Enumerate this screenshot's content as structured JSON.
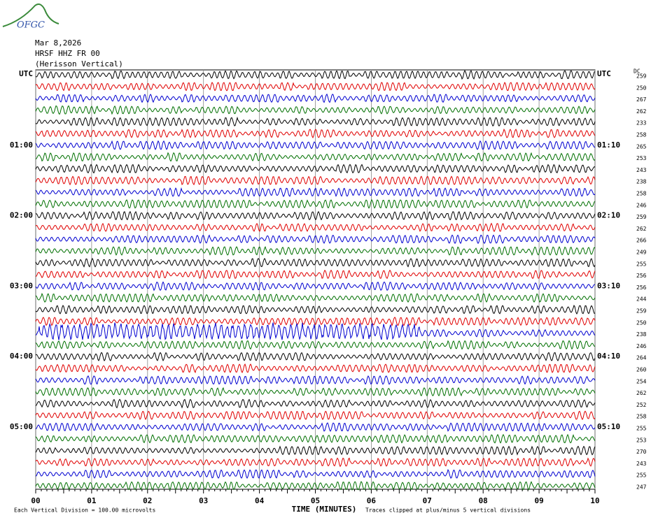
{
  "logo": "OFGC",
  "header": {
    "date": "Mar 8,2026",
    "station": "HRSF HHZ FR 00",
    "location": "(Herisson Vertical)"
  },
  "left_labels": [
    "UTC",
    "01:00",
    "02:00",
    "03:00",
    "04:00",
    "05:00"
  ],
  "right_labels": [
    "UTC",
    "01:10",
    "02:10",
    "03:10",
    "04:10",
    "05:10"
  ],
  "dc_header": "DC",
  "dc_values": [
    259,
    250,
    267,
    262,
    233,
    258,
    265,
    253,
    243,
    238,
    258,
    246,
    259,
    262,
    266,
    249,
    255,
    256,
    256,
    244,
    259,
    250,
    238,
    246,
    264,
    260,
    254,
    262,
    252,
    258,
    255,
    253,
    270,
    243,
    255,
    247
  ],
  "x_axis": {
    "label": "TIME (MINUTES)",
    "xlim": [
      0,
      10
    ],
    "ticks": [
      {
        "value": 0,
        "label": "00"
      },
      {
        "value": 1,
        "label": "01"
      },
      {
        "value": 2,
        "label": "02"
      },
      {
        "value": 3,
        "label": "03"
      },
      {
        "value": 4,
        "label": "04"
      },
      {
        "value": 5,
        "label": "05"
      },
      {
        "value": 6,
        "label": "06"
      },
      {
        "value": 7,
        "label": "07"
      },
      {
        "value": 8,
        "label": "08"
      },
      {
        "value": 9,
        "label": "09"
      },
      {
        "value": 10,
        "label": "10"
      }
    ]
  },
  "footer": {
    "scale": "Each Vertical Division =  100.00 microvolts",
    "clip": "Traces clipped at plus/minus 5 vertical divisions"
  },
  "trace_colors": [
    "#000000",
    "#e00000",
    "#0000d0",
    "#007000"
  ]
}
